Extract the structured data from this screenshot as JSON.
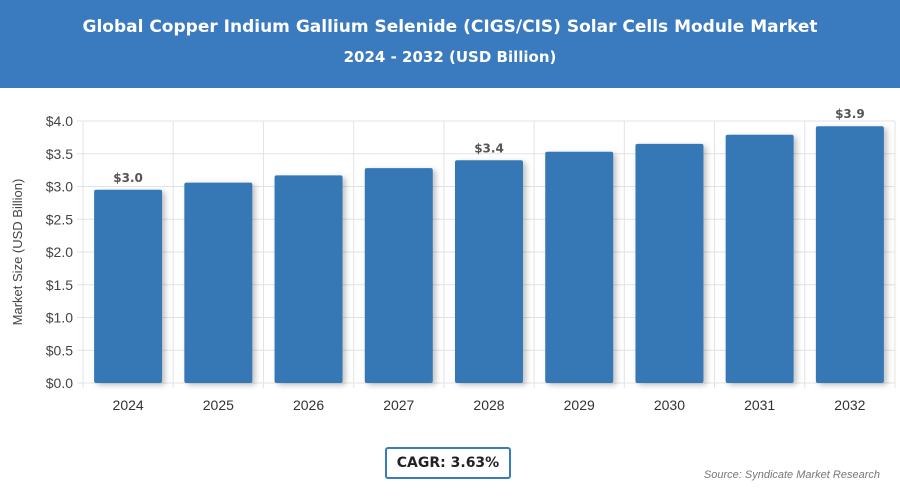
{
  "header": {
    "title": "Global Copper Indium Gallium Selenide (CIGS/CIS) Solar Cells Module Market",
    "subtitle": "2024 - 2032 (USD Billion)"
  },
  "chart_data": {
    "type": "bar",
    "title": "Global Copper Indium Gallium Selenide (CIGS/CIS) Solar Cells Module Market",
    "subtitle": "2024 - 2032 (USD Billion)",
    "xlabel": "",
    "ylabel": "Market Size (USD Billion)",
    "categories": [
      "2024",
      "2025",
      "2026",
      "2027",
      "2028",
      "2029",
      "2030",
      "2031",
      "2032"
    ],
    "values": [
      2.95,
      3.06,
      3.17,
      3.28,
      3.4,
      3.53,
      3.65,
      3.79,
      3.92
    ],
    "data_labels": {
      "0": "$3.0",
      "4": "$3.4",
      "8": "$3.9"
    },
    "ylim": [
      0,
      4.0
    ],
    "yticks": [
      "$0.0",
      "$0.5",
      "$1.0",
      "$1.5",
      "$2.0",
      "$2.5",
      "$3.0",
      "$3.5",
      "$4.0"
    ],
    "grid": true,
    "bar_color": "#3478b5"
  },
  "footer": {
    "cagr": "CAGR: 3.63%",
    "source": "Source: Syndicate Market Research"
  }
}
